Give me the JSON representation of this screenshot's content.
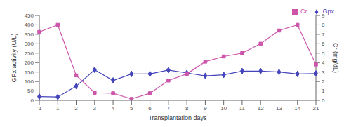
{
  "chart_data": {
    "type": "line",
    "xlabel": "Transplantation days",
    "ylabel": "GPx activity (U/L)",
    "y2label": "Cr (mg/dL)",
    "categories": [
      "-1",
      "1",
      "2",
      "3",
      "4",
      "5",
      "6",
      "7",
      "8",
      "9",
      "10",
      "11",
      "12",
      "13",
      "14",
      "21"
    ],
    "series": [
      {
        "name": "Gpx",
        "color": "#4444bb",
        "marker": "diamond",
        "values": [
          20,
          18,
          75,
          162,
          105,
          140,
          140,
          160,
          145,
          130,
          135,
          155,
          155,
          150,
          140,
          142
        ]
      },
      {
        "name": "Cr",
        "color": "#cc55aa",
        "marker": "square",
        "axis": "y2",
        "values": [
          7.25,
          8.0,
          2.65,
          0.8,
          0.75,
          0.15,
          0.75,
          2.1,
          2.8,
          4.1,
          4.65,
          5.0,
          6.0,
          7.4,
          8.0,
          3.8
        ]
      }
    ],
    "ylim": [
      0,
      450
    ],
    "yticks": [
      0,
      50,
      100,
      150,
      200,
      250,
      300,
      350,
      400,
      450
    ],
    "y2lim": [
      0,
      9
    ],
    "y2ticks": [
      0,
      1,
      2,
      3,
      4,
      5,
      6,
      7,
      8,
      9
    ],
    "legend": "upper right"
  }
}
